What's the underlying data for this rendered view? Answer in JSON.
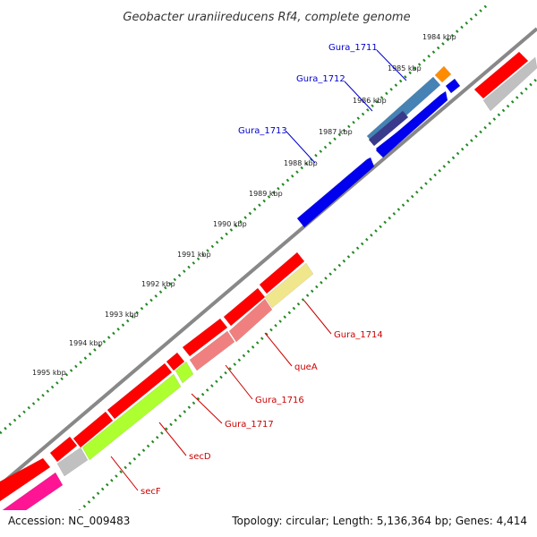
{
  "title": "Geobacter uraniireducens Rf4, complete genome",
  "footer": {
    "accession": "Accession: NC_009483",
    "summary": "Topology: circular; Length: 5,136,364 bp; Genes: 4,414"
  },
  "colors": {
    "backbone": "#888888",
    "dots": "#228822",
    "red": "#ff0000",
    "blue": "#0000ee",
    "steel": "#4682b4",
    "orange": "#ff8c00",
    "grey": "#c0c0c0",
    "salmon": "#f08080",
    "khaki": "#f0e68c",
    "lime": "#adff2f",
    "magenta": "#ff1493",
    "label_red": "#cc0000",
    "label_blue": "#0000cc"
  },
  "ticks": [
    "1984 kbp",
    "1985 kbp",
    "1986 kbp",
    "1987 kbp",
    "1988 kbp",
    "1989 kbp",
    "1990 kbp",
    "1991 kbp",
    "1992 kbp",
    "1993 kbp",
    "1994 kbp",
    "1995 kbp"
  ],
  "gene_labels": [
    {
      "text": "Gura_1711",
      "color": "label_blue"
    },
    {
      "text": "Gura_1712",
      "color": "label_blue"
    },
    {
      "text": "Gura_1713",
      "color": "label_blue"
    },
    {
      "text": "Gura_1714",
      "color": "label_red"
    },
    {
      "text": "queA",
      "color": "label_red"
    },
    {
      "text": "Gura_1716",
      "color": "label_red"
    },
    {
      "text": "Gura_1717",
      "color": "label_red"
    },
    {
      "text": "secD",
      "color": "label_red"
    },
    {
      "text": "secF",
      "color": "label_red"
    }
  ]
}
